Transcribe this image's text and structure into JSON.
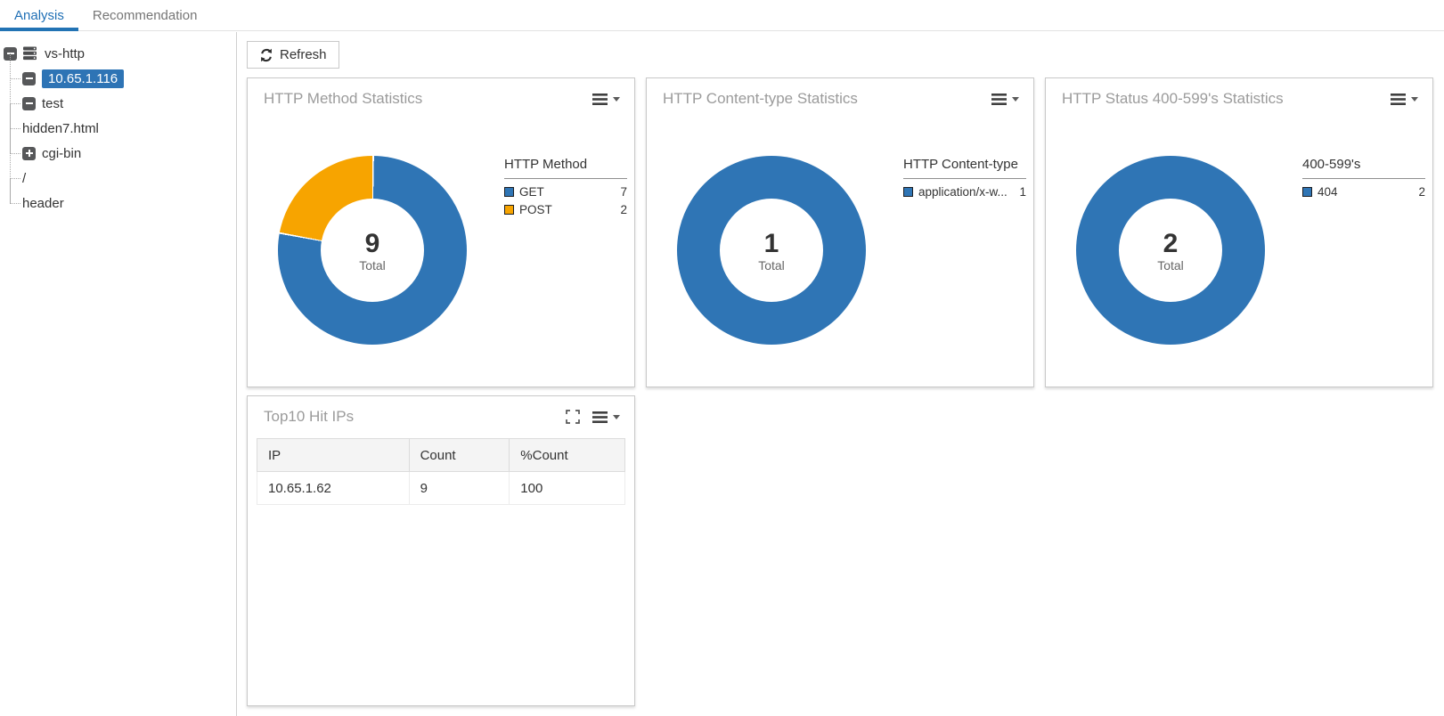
{
  "tabs": [
    {
      "label": "Analysis",
      "active": true
    },
    {
      "label": "Recommendation",
      "active": false
    }
  ],
  "tree": {
    "nodes": [
      {
        "label": "vs-http",
        "expander": "minus",
        "icon": "server"
      },
      {
        "label": "10.65.1.116",
        "expander": "minus",
        "selected": true
      },
      {
        "label": "test",
        "expander": "minus"
      },
      {
        "label": "hidden7.html"
      },
      {
        "label": "cgi-bin",
        "expander": "plus"
      },
      {
        "label": "/"
      },
      {
        "label": "header"
      }
    ]
  },
  "toolbar": {
    "refresh_label": "Refresh"
  },
  "cards": {
    "method": {
      "title": "HTTP Method Statistics",
      "legend_title": "HTTP Method",
      "total": "9",
      "total_label": "Total",
      "items": [
        {
          "label": "GET",
          "value": 7,
          "color": "#2f75b5"
        },
        {
          "label": "POST",
          "value": 2,
          "color": "#f7a400"
        }
      ]
    },
    "content_type": {
      "title": "HTTP Content-type Statistics",
      "legend_title": "HTTP Content-type",
      "total": "1",
      "total_label": "Total",
      "items": [
        {
          "label": "application/x-w...",
          "value": 1,
          "color": "#2f75b5"
        }
      ]
    },
    "status": {
      "title": "HTTP Status 400-599's Statistics",
      "legend_title": "400-599's",
      "total": "2",
      "total_label": "Total",
      "items": [
        {
          "label": "404",
          "value": 2,
          "color": "#2f75b5"
        }
      ]
    },
    "top_ips": {
      "title": "Top10 Hit IPs",
      "columns": [
        "IP",
        "Count",
        "%Count"
      ],
      "rows": [
        [
          "10.65.1.62",
          "9",
          "100"
        ]
      ]
    }
  },
  "chart_data": [
    {
      "type": "pie",
      "title": "HTTP Method Statistics",
      "legend_title": "HTTP Method",
      "categories": [
        "GET",
        "POST"
      ],
      "values": [
        7,
        2
      ],
      "colors": [
        "#2f75b5",
        "#f7a400"
      ],
      "total": 9,
      "center_label": "Total",
      "legend_position": "right"
    },
    {
      "type": "pie",
      "title": "HTTP Content-type Statistics",
      "legend_title": "HTTP Content-type",
      "categories": [
        "application/x-w..."
      ],
      "values": [
        1
      ],
      "colors": [
        "#2f75b5"
      ],
      "total": 1,
      "center_label": "Total",
      "legend_position": "right"
    },
    {
      "type": "pie",
      "title": "HTTP Status 400-599's Statistics",
      "legend_title": "400-599's",
      "categories": [
        "404"
      ],
      "values": [
        2
      ],
      "colors": [
        "#2f75b5"
      ],
      "total": 2,
      "center_label": "Total",
      "legend_position": "right"
    },
    {
      "type": "table",
      "title": "Top10 Hit IPs",
      "columns": [
        "IP",
        "Count",
        "%Count"
      ],
      "rows": [
        [
          "10.65.1.62",
          "9",
          "100"
        ]
      ]
    }
  ],
  "colors": {
    "accent_blue": "#2f75b5",
    "accent_orange": "#f7a400",
    "tab_active": "#1f6fb5",
    "card_title": "#9b9b9b"
  }
}
